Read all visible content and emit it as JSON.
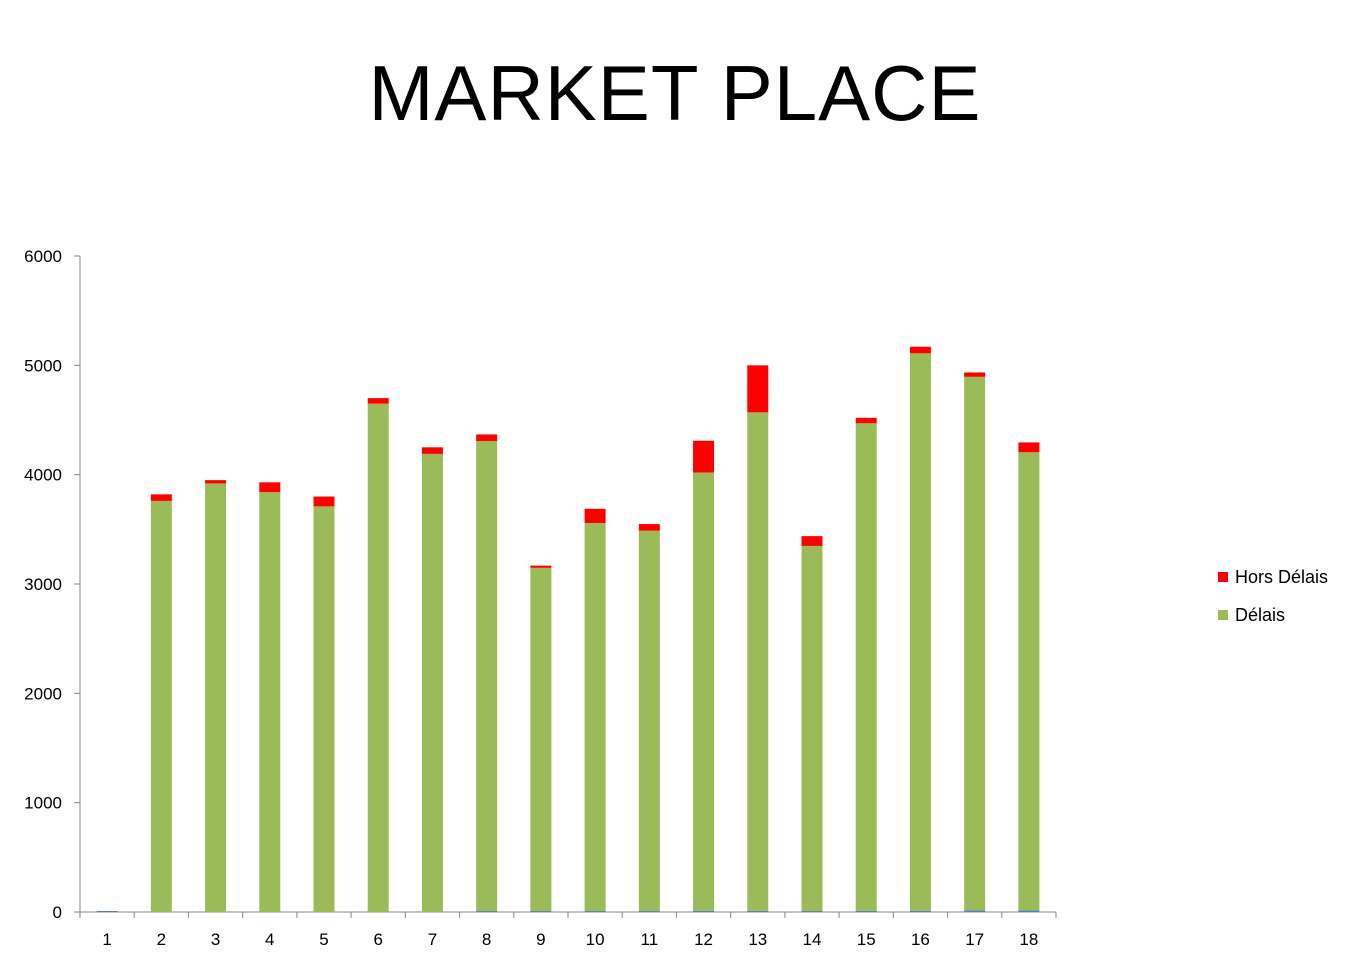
{
  "chart_data": {
    "type": "bar",
    "stacked": true,
    "title": "MARKET PLACE",
    "xlabel": "",
    "ylabel": "",
    "ylim": [
      0,
      6000
    ],
    "yticks": [
      "0",
      "1000",
      "2000",
      "3000",
      "4000",
      "5000",
      "6000"
    ],
    "categories": [
      "1",
      "2",
      "3",
      "4",
      "5",
      "6",
      "7",
      "8",
      "9",
      "10",
      "11",
      "12",
      "13",
      "14",
      "15",
      "16",
      "17",
      "18"
    ],
    "series": [
      {
        "name": "",
        "color": "#4f81bd",
        "values": [
          5,
          0,
          0,
          0,
          0,
          0,
          0,
          8,
          8,
          8,
          8,
          10,
          10,
          8,
          10,
          10,
          15,
          15
        ]
      },
      {
        "name": "Délais",
        "color": "#9bbb59",
        "values": [
          0,
          3760,
          3920,
          3840,
          3710,
          4650,
          4190,
          4300,
          3140,
          3550,
          3480,
          4010,
          4560,
          3340,
          4460,
          5100,
          4880,
          4190
        ]
      },
      {
        "name": "Hors Délais",
        "color": "#ff0000",
        "values": [
          0,
          60,
          30,
          90,
          90,
          50,
          60,
          60,
          20,
          130,
          60,
          290,
          430,
          90,
          50,
          60,
          40,
          90
        ]
      }
    ],
    "legend": {
      "position": "right",
      "entries": [
        "Hors Délais",
        "Délais"
      ]
    },
    "grid": false
  }
}
